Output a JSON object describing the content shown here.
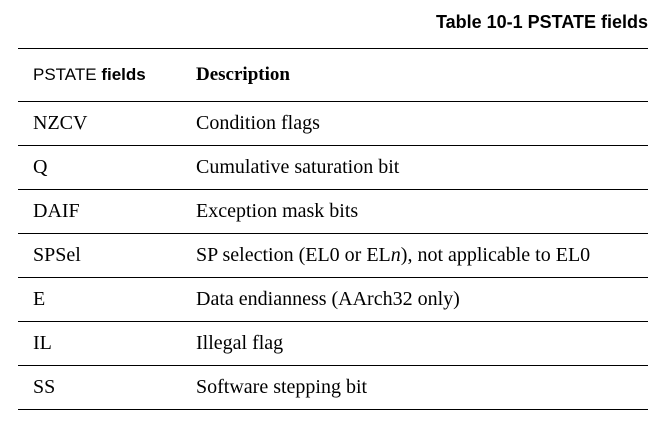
{
  "caption": "Table 10-1 PSTATE fields",
  "header": {
    "col1_prefix": "PSTATE",
    "col1_suffix": "fields",
    "col2": "Description"
  },
  "rows": [
    {
      "field": "NZCV",
      "description": "Condition flags"
    },
    {
      "field": "Q",
      "description": "Cumulative saturation bit"
    },
    {
      "field": "DAIF",
      "description": "Exception mask bits"
    },
    {
      "field": "SPSel",
      "desc_before": "SP selection (EL0 or EL",
      "desc_italic": "n",
      "desc_after": "), not applicable to EL0"
    },
    {
      "field": "E",
      "description": "Data endianness (AArch32 only)"
    },
    {
      "field": "IL",
      "description": "Illegal flag"
    },
    {
      "field": "SS",
      "description": "Software stepping bit"
    }
  ]
}
